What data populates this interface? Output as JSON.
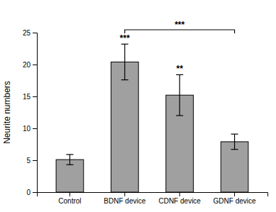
{
  "chart_data": {
    "type": "bar",
    "categories": [
      "Control",
      "BDNF device",
      "CDNF device",
      "GDNF device"
    ],
    "values": [
      5.1,
      20.4,
      15.2,
      7.9
    ],
    "errors": [
      0.8,
      2.8,
      3.2,
      1.2
    ],
    "color": "#a0a0a0",
    "ylabel": "Neurite numbers",
    "ylim": [
      0,
      25
    ],
    "yticks": [
      0,
      5,
      10,
      15,
      20,
      25
    ],
    "grid": false,
    "annotations": [
      {
        "text": "***",
        "category": "BDNF device"
      },
      {
        "text": "**",
        "category": "CDNF device"
      },
      {
        "text": "***",
        "from": "BDNF device",
        "to": "GDNF device"
      }
    ]
  }
}
